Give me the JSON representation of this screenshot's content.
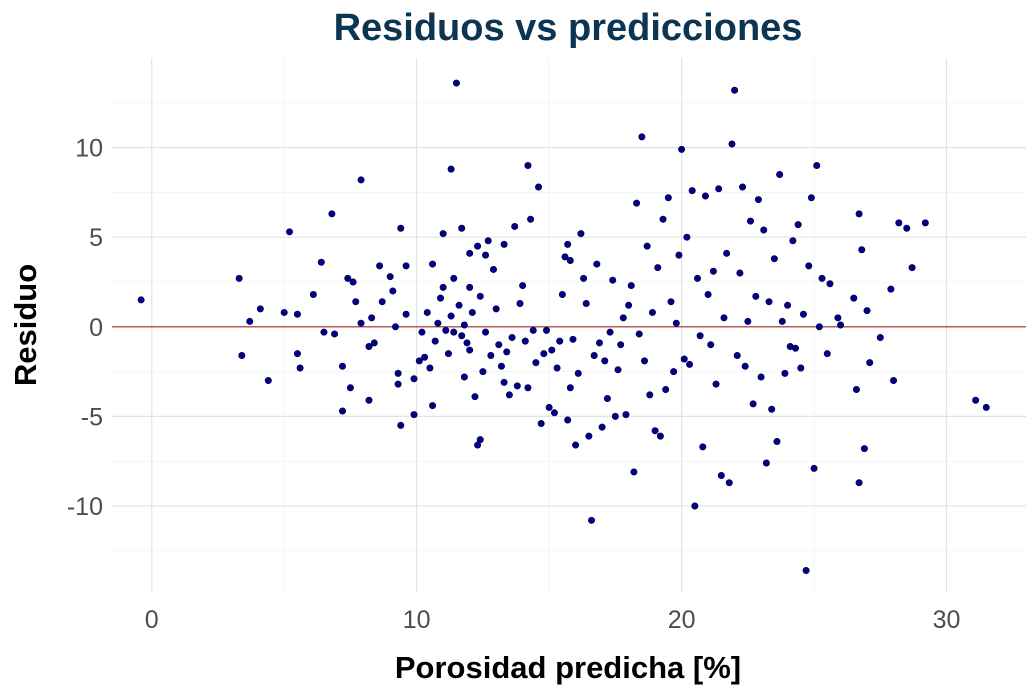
{
  "chart_data": {
    "type": "scatter",
    "title": "Residuos vs predicciones",
    "xlabel": "Porosidad predicha [%]",
    "ylabel": "Residuo",
    "xlim": [
      -1.5,
      33
    ],
    "ylim": [
      -14.8,
      15
    ],
    "x_ticks": [
      0,
      10,
      20,
      30
    ],
    "y_ticks": [
      -10,
      -5,
      0,
      5,
      10
    ],
    "x_tick_labels": [
      "0",
      "10",
      "20",
      "30"
    ],
    "y_tick_labels": [
      "-10",
      "-5",
      "0",
      "5",
      "10"
    ],
    "grid": true,
    "reference_line": {
      "y": 0,
      "color": "#a52a2a"
    },
    "point_color": "#00008b",
    "points": [
      [
        -0.4,
        1.5
      ],
      [
        3.3,
        2.7
      ],
      [
        3.4,
        -1.6
      ],
      [
        3.7,
        0.3
      ],
      [
        4.1,
        1.0
      ],
      [
        4.4,
        -3.0
      ],
      [
        5.0,
        0.8
      ],
      [
        5.2,
        5.3
      ],
      [
        5.5,
        0.7
      ],
      [
        5.5,
        -1.5
      ],
      [
        5.6,
        -2.3
      ],
      [
        6.1,
        1.8
      ],
      [
        6.4,
        3.6
      ],
      [
        6.5,
        -0.3
      ],
      [
        6.8,
        6.3
      ],
      [
        6.9,
        -0.4
      ],
      [
        7.2,
        -2.2
      ],
      [
        7.2,
        -4.7
      ],
      [
        7.4,
        2.7
      ],
      [
        7.5,
        -3.4
      ],
      [
        7.6,
        2.5
      ],
      [
        7.7,
        1.4
      ],
      [
        7.9,
        8.2
      ],
      [
        7.9,
        0.2
      ],
      [
        8.2,
        -4.1
      ],
      [
        8.2,
        -1.1
      ],
      [
        8.3,
        0.5
      ],
      [
        8.4,
        -0.9
      ],
      [
        8.6,
        3.4
      ],
      [
        8.7,
        1.4
      ],
      [
        9.0,
        2.8
      ],
      [
        9.1,
        2.0
      ],
      [
        9.2,
        0.0
      ],
      [
        9.3,
        -2.6
      ],
      [
        9.3,
        -3.2
      ],
      [
        9.4,
        -5.5
      ],
      [
        9.4,
        5.5
      ],
      [
        9.6,
        0.7
      ],
      [
        9.6,
        3.4
      ],
      [
        9.9,
        -4.9
      ],
      [
        9.9,
        -2.9
      ],
      [
        10.1,
        -1.9
      ],
      [
        10.2,
        -0.3
      ],
      [
        10.3,
        -1.7
      ],
      [
        10.4,
        0.8
      ],
      [
        10.5,
        -2.3
      ],
      [
        10.6,
        -4.4
      ],
      [
        10.6,
        3.5
      ],
      [
        10.7,
        -0.8
      ],
      [
        10.8,
        0.2
      ],
      [
        10.9,
        1.6
      ],
      [
        11.0,
        2.2
      ],
      [
        11.0,
        5.2
      ],
      [
        11.1,
        -0.2
      ],
      [
        11.2,
        -1.5
      ],
      [
        11.3,
        0.6
      ],
      [
        11.3,
        8.8
      ],
      [
        11.4,
        2.7
      ],
      [
        11.4,
        -0.3
      ],
      [
        11.5,
        13.6
      ],
      [
        11.6,
        1.2
      ],
      [
        11.7,
        -0.5
      ],
      [
        11.7,
        5.5
      ],
      [
        11.8,
        0.1
      ],
      [
        11.8,
        -2.8
      ],
      [
        11.9,
        -0.9
      ],
      [
        12.0,
        4.1
      ],
      [
        12.0,
        2.2
      ],
      [
        12.0,
        -1.3
      ],
      [
        12.1,
        0.8
      ],
      [
        12.2,
        -3.9
      ],
      [
        12.3,
        4.5
      ],
      [
        12.3,
        -6.6
      ],
      [
        12.4,
        -6.3
      ],
      [
        12.4,
        1.7
      ],
      [
        12.5,
        -2.5
      ],
      [
        12.6,
        -0.3
      ],
      [
        12.6,
        4.0
      ],
      [
        12.7,
        4.8
      ],
      [
        12.8,
        -1.6
      ],
      [
        12.9,
        3.2
      ],
      [
        13.0,
        1.0
      ],
      [
        13.1,
        -1.0
      ],
      [
        13.2,
        -2.2
      ],
      [
        13.3,
        -3.1
      ],
      [
        13.3,
        4.6
      ],
      [
        13.4,
        -1.4
      ],
      [
        13.5,
        -3.8
      ],
      [
        13.6,
        -0.6
      ],
      [
        13.7,
        5.6
      ],
      [
        13.8,
        -3.3
      ],
      [
        13.9,
        1.3
      ],
      [
        14.0,
        2.3
      ],
      [
        14.1,
        -0.8
      ],
      [
        14.2,
        -3.4
      ],
      [
        14.2,
        9.0
      ],
      [
        14.3,
        6.0
      ],
      [
        14.4,
        -0.2
      ],
      [
        14.5,
        -2.0
      ],
      [
        14.6,
        7.8
      ],
      [
        14.7,
        -5.4
      ],
      [
        14.8,
        -1.5
      ],
      [
        14.9,
        -0.2
      ],
      [
        15.0,
        -4.5
      ],
      [
        15.1,
        -1.3
      ],
      [
        15.2,
        -4.8
      ],
      [
        15.3,
        -2.3
      ],
      [
        15.4,
        -0.8
      ],
      [
        15.5,
        1.8
      ],
      [
        15.6,
        3.9
      ],
      [
        15.7,
        -5.2
      ],
      [
        15.7,
        4.6
      ],
      [
        15.8,
        -3.4
      ],
      [
        15.8,
        3.7
      ],
      [
        15.9,
        -0.7
      ],
      [
        16.0,
        -6.6
      ],
      [
        16.1,
        -2.6
      ],
      [
        16.2,
        5.2
      ],
      [
        16.3,
        2.7
      ],
      [
        16.4,
        1.3
      ],
      [
        16.5,
        -6.1
      ],
      [
        16.6,
        -10.8
      ],
      [
        16.7,
        -1.6
      ],
      [
        16.8,
        3.5
      ],
      [
        16.9,
        -0.9
      ],
      [
        17.0,
        -5.6
      ],
      [
        17.1,
        -1.9
      ],
      [
        17.2,
        -4.0
      ],
      [
        17.3,
        -0.3
      ],
      [
        17.4,
        2.6
      ],
      [
        17.5,
        -5.0
      ],
      [
        17.6,
        -2.4
      ],
      [
        17.7,
        -1.0
      ],
      [
        17.8,
        0.5
      ],
      [
        17.9,
        -4.9
      ],
      [
        18.0,
        1.2
      ],
      [
        18.1,
        2.3
      ],
      [
        18.2,
        -8.1
      ],
      [
        18.3,
        6.9
      ],
      [
        18.4,
        -0.4
      ],
      [
        18.5,
        10.6
      ],
      [
        18.6,
        -1.9
      ],
      [
        18.7,
        4.5
      ],
      [
        18.8,
        -3.8
      ],
      [
        18.9,
        0.8
      ],
      [
        19.0,
        -5.8
      ],
      [
        19.1,
        3.3
      ],
      [
        19.2,
        -6.1
      ],
      [
        19.3,
        6.0
      ],
      [
        19.4,
        -3.5
      ],
      [
        19.5,
        7.2
      ],
      [
        19.6,
        1.4
      ],
      [
        19.7,
        -2.5
      ],
      [
        19.8,
        0.2
      ],
      [
        19.9,
        4.0
      ],
      [
        20.0,
        9.9
      ],
      [
        20.1,
        -1.8
      ],
      [
        20.2,
        5.0
      ],
      [
        20.3,
        -2.1
      ],
      [
        20.4,
        7.6
      ],
      [
        20.5,
        -10.0
      ],
      [
        20.6,
        2.7
      ],
      [
        20.7,
        -0.5
      ],
      [
        20.8,
        -6.7
      ],
      [
        20.9,
        7.3
      ],
      [
        21.0,
        1.8
      ],
      [
        21.1,
        -1.0
      ],
      [
        21.2,
        3.1
      ],
      [
        21.3,
        -3.2
      ],
      [
        21.4,
        7.7
      ],
      [
        21.5,
        -8.3
      ],
      [
        21.6,
        0.5
      ],
      [
        21.7,
        4.1
      ],
      [
        21.8,
        -8.7
      ],
      [
        21.9,
        10.2
      ],
      [
        22.0,
        13.2
      ],
      [
        22.1,
        -1.6
      ],
      [
        22.2,
        3.0
      ],
      [
        22.3,
        7.8
      ],
      [
        22.4,
        -2.2
      ],
      [
        22.5,
        0.3
      ],
      [
        22.6,
        5.9
      ],
      [
        22.7,
        -4.3
      ],
      [
        22.8,
        1.7
      ],
      [
        22.9,
        7.1
      ],
      [
        23.0,
        -2.8
      ],
      [
        23.1,
        5.4
      ],
      [
        23.2,
        -7.6
      ],
      [
        23.3,
        1.4
      ],
      [
        23.4,
        -4.6
      ],
      [
        23.5,
        3.8
      ],
      [
        23.6,
        -6.4
      ],
      [
        23.7,
        8.5
      ],
      [
        23.8,
        0.3
      ],
      [
        23.9,
        -2.6
      ],
      [
        24.0,
        1.2
      ],
      [
        24.1,
        -1.1
      ],
      [
        24.2,
        4.8
      ],
      [
        24.3,
        -1.2
      ],
      [
        24.4,
        5.7
      ],
      [
        24.5,
        -2.3
      ],
      [
        24.6,
        0.7
      ],
      [
        24.7,
        -13.6
      ],
      [
        24.8,
        3.4
      ],
      [
        24.9,
        7.2
      ],
      [
        25.0,
        -7.9
      ],
      [
        25.1,
        9.0
      ],
      [
        25.2,
        0.0
      ],
      [
        25.3,
        2.7
      ],
      [
        25.5,
        -1.5
      ],
      [
        25.6,
        2.4
      ],
      [
        25.9,
        0.5
      ],
      [
        26.0,
        0.1
      ],
      [
        26.5,
        1.6
      ],
      [
        26.6,
        -3.5
      ],
      [
        26.7,
        6.3
      ],
      [
        26.8,
        4.3
      ],
      [
        26.9,
        -6.8
      ],
      [
        27.0,
        0.9
      ],
      [
        27.1,
        -2.0
      ],
      [
        26.7,
        -8.7
      ],
      [
        27.5,
        -0.6
      ],
      [
        27.9,
        2.1
      ],
      [
        28.0,
        -3.0
      ],
      [
        28.2,
        5.8
      ],
      [
        28.5,
        5.5
      ],
      [
        28.7,
        3.3
      ],
      [
        29.2,
        5.8
      ],
      [
        31.1,
        -4.1
      ],
      [
        31.5,
        -4.5
      ]
    ]
  }
}
